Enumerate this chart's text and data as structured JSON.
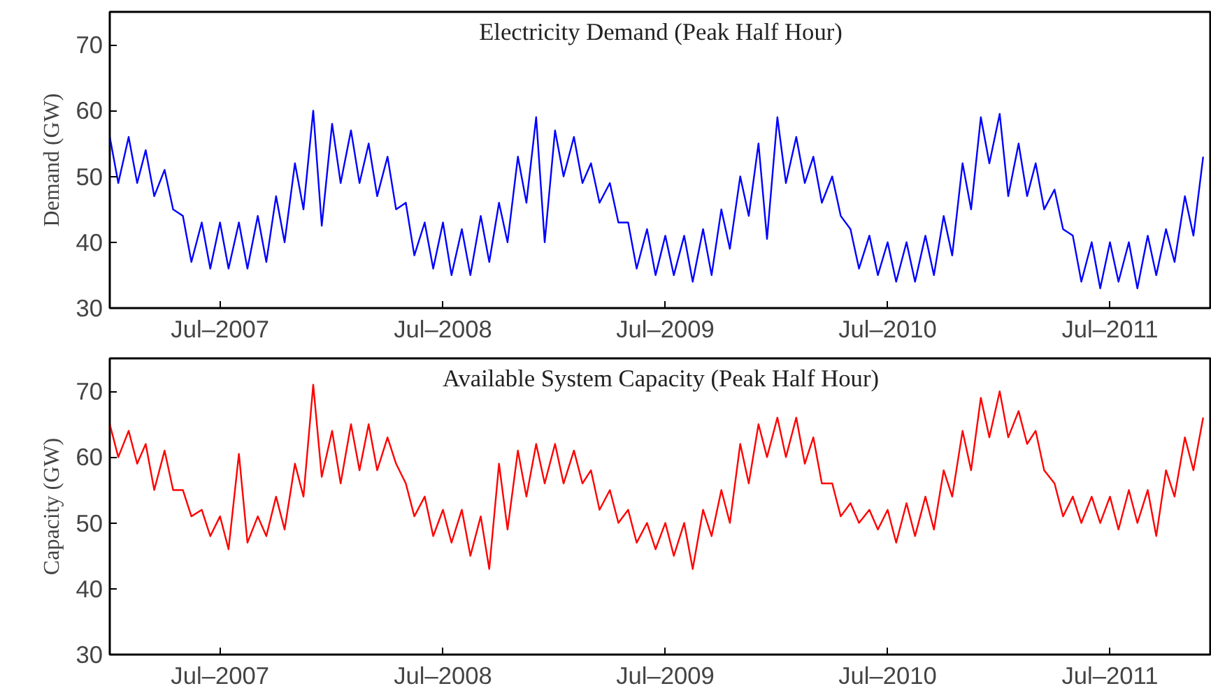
{
  "chart_data": [
    {
      "type": "line",
      "title": "Electricity Demand (Peak Half Hour)",
      "ylabel": "Demand (GW)",
      "x": [
        "2007-01-01",
        "2007-01-15",
        "2007-02-01",
        "2007-02-15",
        "2007-03-01",
        "2007-03-15",
        "2007-04-01",
        "2007-04-15",
        "2007-05-01",
        "2007-05-15",
        "2007-06-01",
        "2007-06-15",
        "2007-07-01",
        "2007-07-15",
        "2007-08-01",
        "2007-08-15",
        "2007-09-01",
        "2007-09-15",
        "2007-10-01",
        "2007-10-15",
        "2007-11-01",
        "2007-11-15",
        "2007-12-01",
        "2007-12-15",
        "2008-01-01",
        "2008-01-15",
        "2008-02-01",
        "2008-02-15",
        "2008-03-01",
        "2008-03-15",
        "2008-04-01",
        "2008-04-15",
        "2008-05-01",
        "2008-05-15",
        "2008-06-01",
        "2008-06-15",
        "2008-07-01",
        "2008-07-15",
        "2008-08-01",
        "2008-08-15",
        "2008-09-01",
        "2008-09-15",
        "2008-10-01",
        "2008-10-15",
        "2008-11-01",
        "2008-11-15",
        "2008-12-01",
        "2008-12-15",
        "2009-01-01",
        "2009-01-15",
        "2009-02-01",
        "2009-02-15",
        "2009-03-01",
        "2009-03-15",
        "2009-04-01",
        "2009-04-15",
        "2009-05-01",
        "2009-05-15",
        "2009-06-01",
        "2009-06-15",
        "2009-07-01",
        "2009-07-15",
        "2009-08-01",
        "2009-08-15",
        "2009-09-01",
        "2009-09-15",
        "2009-10-01",
        "2009-10-15",
        "2009-11-01",
        "2009-11-15",
        "2009-12-01",
        "2009-12-15",
        "2010-01-01",
        "2010-01-15",
        "2010-02-01",
        "2010-02-15",
        "2010-03-01",
        "2010-03-15",
        "2010-04-01",
        "2010-04-15",
        "2010-05-01",
        "2010-05-15",
        "2010-06-01",
        "2010-06-15",
        "2010-07-01",
        "2010-07-15",
        "2010-08-01",
        "2010-08-15",
        "2010-09-01",
        "2010-09-15",
        "2010-10-01",
        "2010-10-15",
        "2010-11-01",
        "2010-11-15",
        "2010-12-01",
        "2010-12-15",
        "2011-01-01",
        "2011-01-15",
        "2011-02-01",
        "2011-02-15",
        "2011-03-01",
        "2011-03-15",
        "2011-04-01",
        "2011-04-15",
        "2011-05-01",
        "2011-05-15",
        "2011-06-01",
        "2011-06-15",
        "2011-07-01",
        "2011-07-15",
        "2011-08-01",
        "2011-08-15",
        "2011-09-01",
        "2011-09-15",
        "2011-10-01",
        "2011-10-15",
        "2011-11-01",
        "2011-11-15",
        "2011-12-01"
      ],
      "series": [
        {
          "color": "#0000ff",
          "values": [
            56,
            49,
            56,
            49,
            54,
            47,
            51,
            45,
            44,
            37,
            43,
            36,
            43,
            36,
            43,
            36,
            44,
            37,
            47,
            40,
            52,
            45,
            60,
            42.5,
            58,
            49,
            57,
            49,
            55,
            47,
            53,
            45,
            46,
            38,
            43,
            36,
            43,
            35,
            42,
            35,
            44,
            37,
            46,
            40,
            53,
            46,
            59,
            40,
            57,
            50,
            56,
            49,
            52,
            46,
            49,
            43,
            43,
            36,
            42,
            35,
            41,
            35,
            41,
            34,
            42,
            35,
            45,
            39,
            50,
            44,
            55,
            40.5,
            59,
            49,
            56,
            49,
            53,
            46,
            50,
            44,
            42,
            36,
            41,
            35,
            40,
            34,
            40,
            34,
            41,
            35,
            44,
            38,
            52,
            45,
            59,
            52,
            59.5,
            47,
            55,
            47,
            52,
            45,
            48,
            42,
            41,
            34,
            40,
            33,
            40,
            34,
            40,
            33,
            41,
            35,
            42,
            37,
            47,
            41,
            53
          ]
        }
      ],
      "xlim": [
        "2007-01-01",
        "2011-12-15"
      ],
      "xticks": [
        {
          "value": "2007-07-01",
          "label": "Jul–2007"
        },
        {
          "value": "2008-07-01",
          "label": "Jul–2008"
        },
        {
          "value": "2009-07-01",
          "label": "Jul–2009"
        },
        {
          "value": "2010-07-01",
          "label": "Jul–2010"
        },
        {
          "value": "2011-07-01",
          "label": "Jul–2011"
        }
      ],
      "ylim": [
        30,
        75
      ],
      "yticks": [
        30,
        40,
        50,
        60,
        70
      ],
      "grid": false
    },
    {
      "type": "line",
      "title": "Available System Capacity (Peak Half Hour)",
      "ylabel": "Capacity (GW)",
      "x": [
        "2007-01-01",
        "2007-01-15",
        "2007-02-01",
        "2007-02-15",
        "2007-03-01",
        "2007-03-15",
        "2007-04-01",
        "2007-04-15",
        "2007-05-01",
        "2007-05-15",
        "2007-06-01",
        "2007-06-15",
        "2007-07-01",
        "2007-07-15",
        "2007-08-01",
        "2007-08-15",
        "2007-09-01",
        "2007-09-15",
        "2007-10-01",
        "2007-10-15",
        "2007-11-01",
        "2007-11-15",
        "2007-12-01",
        "2007-12-15",
        "2008-01-01",
        "2008-01-15",
        "2008-02-01",
        "2008-02-15",
        "2008-03-01",
        "2008-03-15",
        "2008-04-01",
        "2008-04-15",
        "2008-05-01",
        "2008-05-15",
        "2008-06-01",
        "2008-06-15",
        "2008-07-01",
        "2008-07-15",
        "2008-08-01",
        "2008-08-15",
        "2008-09-01",
        "2008-09-15",
        "2008-10-01",
        "2008-10-15",
        "2008-11-01",
        "2008-11-15",
        "2008-12-01",
        "2008-12-15",
        "2009-01-01",
        "2009-01-15",
        "2009-02-01",
        "2009-02-15",
        "2009-03-01",
        "2009-03-15",
        "2009-04-01",
        "2009-04-15",
        "2009-05-01",
        "2009-05-15",
        "2009-06-01",
        "2009-06-15",
        "2009-07-01",
        "2009-07-15",
        "2009-08-01",
        "2009-08-15",
        "2009-09-01",
        "2009-09-15",
        "2009-10-01",
        "2009-10-15",
        "2009-11-01",
        "2009-11-15",
        "2009-12-01",
        "2009-12-15",
        "2010-01-01",
        "2010-01-15",
        "2010-02-01",
        "2010-02-15",
        "2010-03-01",
        "2010-03-15",
        "2010-04-01",
        "2010-04-15",
        "2010-05-01",
        "2010-05-15",
        "2010-06-01",
        "2010-06-15",
        "2010-07-01",
        "2010-07-15",
        "2010-08-01",
        "2010-08-15",
        "2010-09-01",
        "2010-09-15",
        "2010-10-01",
        "2010-10-15",
        "2010-11-01",
        "2010-11-15",
        "2010-12-01",
        "2010-12-15",
        "2011-01-01",
        "2011-01-15",
        "2011-02-01",
        "2011-02-15",
        "2011-03-01",
        "2011-03-15",
        "2011-04-01",
        "2011-04-15",
        "2011-05-01",
        "2011-05-15",
        "2011-06-01",
        "2011-06-15",
        "2011-07-01",
        "2011-07-15",
        "2011-08-01",
        "2011-08-15",
        "2011-09-01",
        "2011-09-15",
        "2011-10-01",
        "2011-10-15",
        "2011-11-01",
        "2011-11-15",
        "2011-12-01"
      ],
      "series": [
        {
          "color": "#ff0000",
          "values": [
            65,
            60,
            64,
            59,
            62,
            55,
            61,
            55,
            55,
            51,
            52,
            48,
            51,
            46,
            60.5,
            47,
            51,
            48,
            54,
            49,
            59,
            54,
            71,
            57,
            64,
            56,
            65,
            58,
            65,
            58,
            63,
            59,
            56,
            51,
            54,
            48,
            52,
            47,
            52,
            45,
            51,
            43,
            59,
            49,
            61,
            54,
            62,
            56,
            62,
            56,
            61,
            56,
            58,
            52,
            55,
            50,
            52,
            47,
            50,
            46,
            50,
            45,
            50,
            43,
            52,
            48,
            55,
            50,
            62,
            56,
            65,
            60,
            66,
            60,
            66,
            59,
            63,
            56,
            56,
            51,
            53,
            50,
            52,
            49,
            52,
            47,
            53,
            48,
            54,
            49,
            58,
            54,
            64,
            58,
            69,
            63,
            70,
            63,
            67,
            62,
            64,
            58,
            56,
            51,
            54,
            50,
            54,
            50,
            54,
            49,
            55,
            50,
            55,
            48,
            58,
            54,
            63,
            58,
            66
          ]
        }
      ],
      "xlim": [
        "2007-01-01",
        "2011-12-15"
      ],
      "xticks": [
        {
          "value": "2007-07-01",
          "label": "Jul–2007"
        },
        {
          "value": "2008-07-01",
          "label": "Jul–2008"
        },
        {
          "value": "2009-07-01",
          "label": "Jul–2009"
        },
        {
          "value": "2010-07-01",
          "label": "Jul–2010"
        },
        {
          "value": "2011-07-01",
          "label": "Jul–2011"
        }
      ],
      "ylim": [
        30,
        75
      ],
      "yticks": [
        30,
        40,
        50,
        60,
        70
      ],
      "grid": false
    }
  ]
}
